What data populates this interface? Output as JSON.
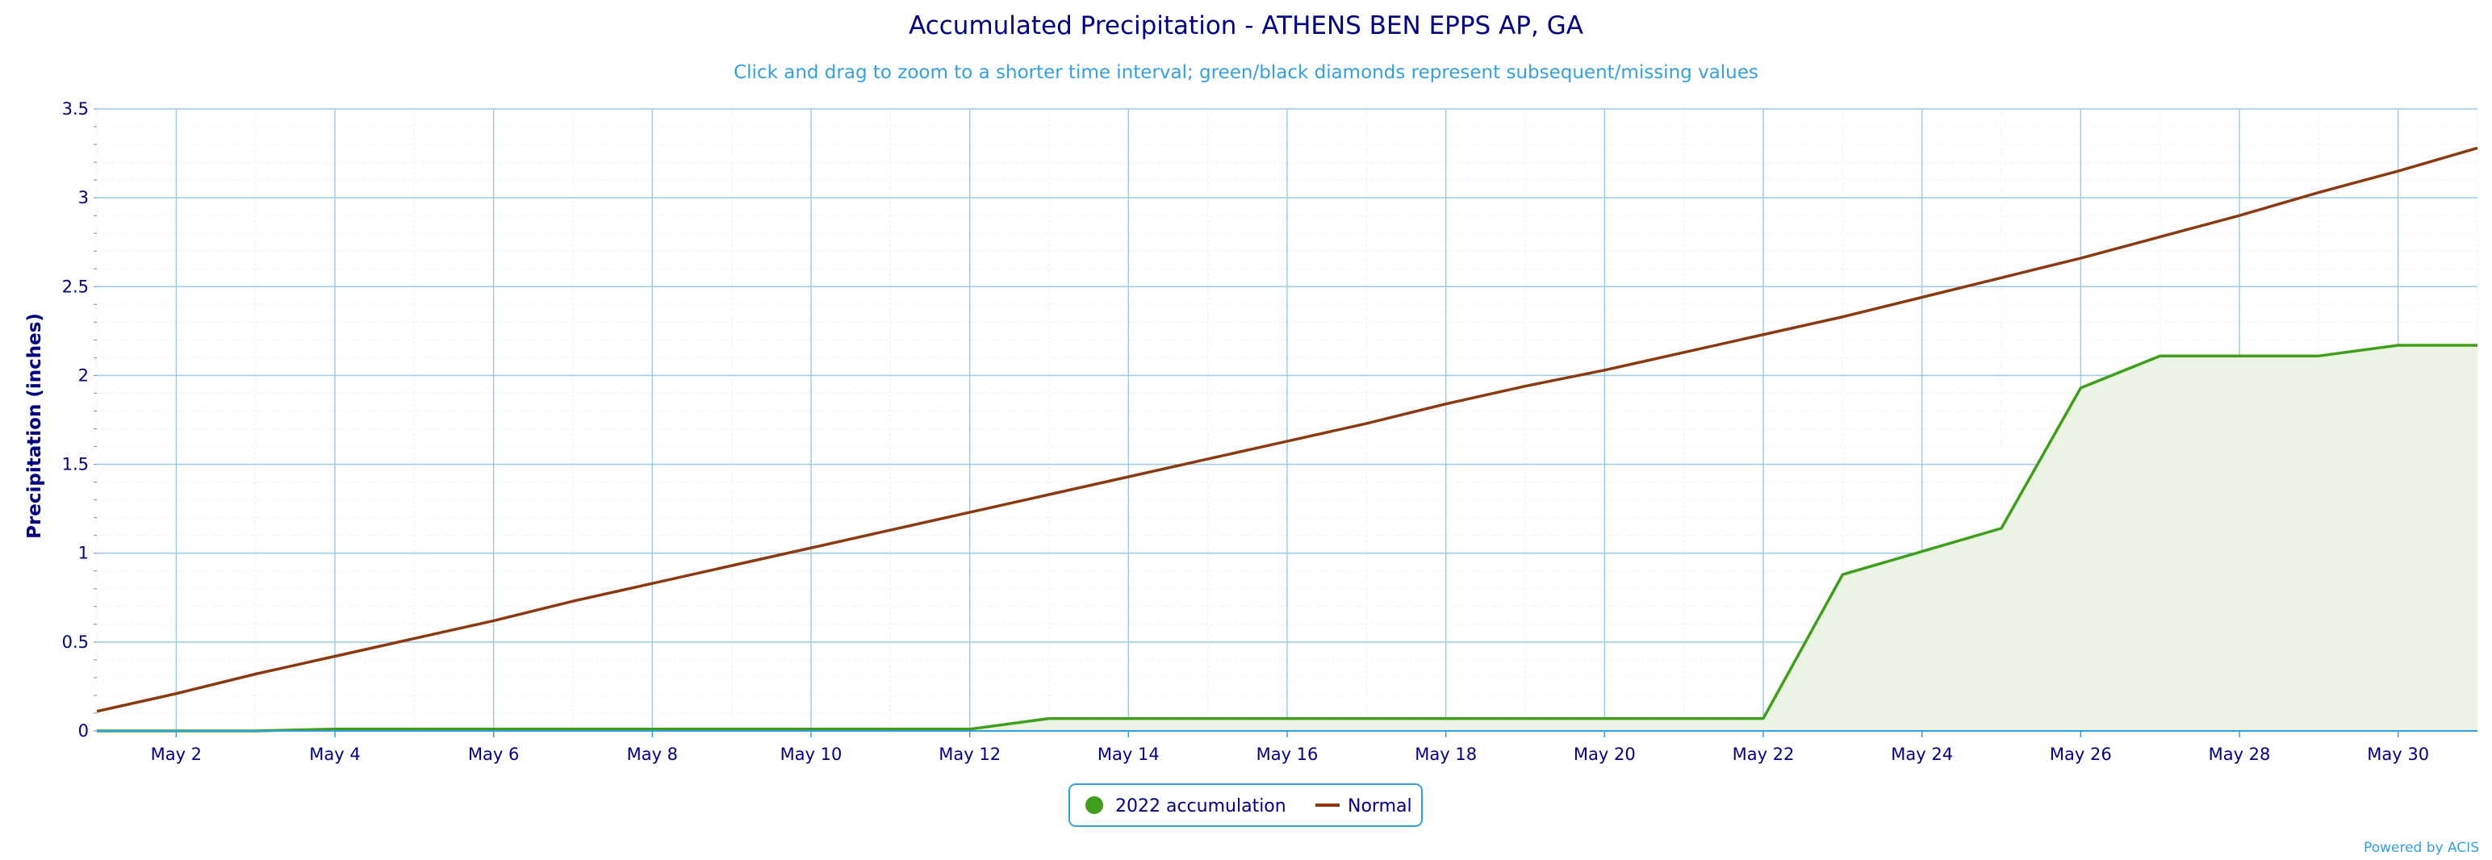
{
  "chart_data": {
    "type": "line",
    "title": "Accumulated Precipitation - ATHENS BEN EPPS AP, GA",
    "subtitle": "Click and drag to zoom to a shorter time interval; green/black diamonds represent subsequent/missing values",
    "ylabel": "Precipitation (inches)",
    "xlabel": "",
    "ylim": [
      0,
      3.5
    ],
    "xlim": [
      "May 1",
      "May 31"
    ],
    "x": [
      "May 1",
      "May 2",
      "May 3",
      "May 4",
      "May 5",
      "May 6",
      "May 7",
      "May 8",
      "May 9",
      "May 10",
      "May 11",
      "May 12",
      "May 13",
      "May 14",
      "May 15",
      "May 16",
      "May 17",
      "May 18",
      "May 19",
      "May 20",
      "May 21",
      "May 22",
      "May 23",
      "May 24",
      "May 25",
      "May 26",
      "May 27",
      "May 28",
      "May 29",
      "May 30",
      "May 31"
    ],
    "x_tick_labels": [
      "May 2",
      "May 4",
      "May 6",
      "May 8",
      "May 10",
      "May 12",
      "May 14",
      "May 16",
      "May 18",
      "May 20",
      "May 22",
      "May 24",
      "May 26",
      "May 28",
      "May 30"
    ],
    "y_tick_labels": [
      "0",
      "0.5",
      "1",
      "1.5",
      "2",
      "2.5",
      "3",
      "3.5"
    ],
    "grid": true,
    "legend_position": "bottom-center",
    "series": [
      {
        "name": "2022 accumulation",
        "color": "#3f9f1a",
        "fill": "#eaf3e4",
        "values": [
          0.0,
          0.0,
          0.0,
          0.01,
          0.01,
          0.01,
          0.01,
          0.01,
          0.01,
          0.01,
          0.01,
          0.01,
          0.07,
          0.07,
          0.07,
          0.07,
          0.07,
          0.07,
          0.07,
          0.07,
          0.07,
          0.07,
          0.88,
          1.01,
          1.14,
          1.93,
          2.11,
          2.11,
          2.11,
          2.17,
          2.17
        ]
      },
      {
        "name": "Normal",
        "color": "#8b3a10",
        "values": [
          0.11,
          0.21,
          0.32,
          0.42,
          0.52,
          0.62,
          0.73,
          0.83,
          0.93,
          1.03,
          1.13,
          1.23,
          1.33,
          1.43,
          1.53,
          1.63,
          1.73,
          1.84,
          1.94,
          2.03,
          2.13,
          2.23,
          2.33,
          2.44,
          2.55,
          2.66,
          2.78,
          2.9,
          3.03,
          3.15,
          3.28
        ]
      }
    ]
  },
  "credit": "Powered by ACIS"
}
